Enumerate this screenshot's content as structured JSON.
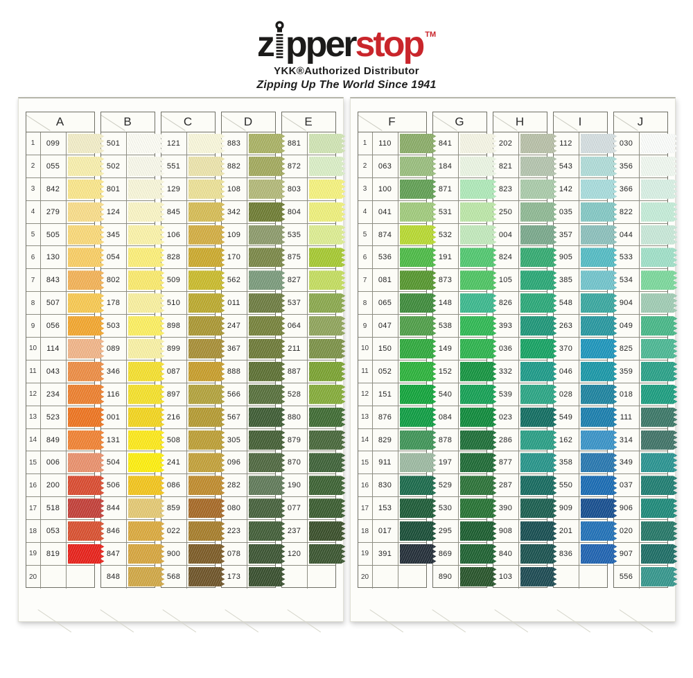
{
  "header": {
    "logo": {
      "part1": "z",
      "part2": "pper",
      "part3": "stop",
      "tm": "TM"
    },
    "subtitle": "YKK®Authorized Distributor",
    "tagline": "Zipping Up The World Since 1941",
    "brand_black": "#1c1b1a",
    "brand_red": "#c9252b"
  },
  "row_numbers": [
    "1",
    "2",
    "3",
    "4",
    "5",
    "6",
    "7",
    "8",
    "9",
    "10",
    "11",
    "12",
    "13",
    "14",
    "15",
    "16",
    "17",
    "18",
    "19",
    "20"
  ],
  "panels": [
    {
      "side": "left",
      "columns": [
        {
          "letter": "A",
          "has_row_numbers": true,
          "cells": [
            {
              "code": "099",
              "color": "#f1ecc7"
            },
            {
              "code": "055",
              "color": "#f7eeac"
            },
            {
              "code": "842",
              "color": "#f9e58a"
            },
            {
              "code": "279",
              "color": "#f8dc89"
            },
            {
              "code": "505",
              "color": "#f9d878"
            },
            {
              "code": "130",
              "color": "#f8cd64"
            },
            {
              "code": "843",
              "color": "#f2b156"
            },
            {
              "code": "507",
              "color": "#f7c851"
            },
            {
              "code": "056",
              "color": "#f2a62e"
            },
            {
              "code": "114",
              "color": "#f0b488"
            },
            {
              "code": "043",
              "color": "#ec8c44"
            },
            {
              "code": "234",
              "color": "#ec7f2e"
            },
            {
              "code": "523",
              "color": "#ed7420"
            },
            {
              "code": "849",
              "color": "#f08233"
            },
            {
              "code": "006",
              "color": "#e9906c"
            },
            {
              "code": "200",
              "color": "#d94b30"
            },
            {
              "code": "518",
              "color": "#c23f38"
            },
            {
              "code": "053",
              "color": "#d85030"
            },
            {
              "code": "819",
              "color": "#e7211a"
            },
            {
              "code": "",
              "color": ""
            }
          ]
        },
        {
          "letter": "B",
          "has_row_numbers": false,
          "cells": [
            {
              "code": "501",
              "color": "#fbfbf3"
            },
            {
              "code": "502",
              "color": "#f7f7e9"
            },
            {
              "code": "801",
              "color": "#f7f5d8"
            },
            {
              "code": "124",
              "color": "#f9f4c4"
            },
            {
              "code": "345",
              "color": "#faf2a8"
            },
            {
              "code": "054",
              "color": "#fbee78"
            },
            {
              "code": "802",
              "color": "#f9e96c"
            },
            {
              "code": "178",
              "color": "#f8ef9e"
            },
            {
              "code": "503",
              "color": "#fbee60"
            },
            {
              "code": "089",
              "color": "#f8f0a4"
            },
            {
              "code": "346",
              "color": "#f4df2e"
            },
            {
              "code": "116",
              "color": "#f4e02a"
            },
            {
              "code": "001",
              "color": "#f2d41e"
            },
            {
              "code": "131",
              "color": "#fce81a"
            },
            {
              "code": "504",
              "color": "#fdee0e"
            },
            {
              "code": "506",
              "color": "#f2c41c"
            },
            {
              "code": "844",
              "color": "#e3c873"
            },
            {
              "code": "846",
              "color": "#daa93e"
            },
            {
              "code": "847",
              "color": "#d6a53e"
            },
            {
              "code": "848",
              "color": "#d0a745"
            }
          ]
        },
        {
          "letter": "C",
          "has_row_numbers": false,
          "cells": [
            {
              "code": "121",
              "color": "#f8f6da"
            },
            {
              "code": "551",
              "color": "#ebe3ab"
            },
            {
              "code": "129",
              "color": "#ebe096"
            },
            {
              "code": "845",
              "color": "#d5bc55"
            },
            {
              "code": "106",
              "color": "#d2ad42"
            },
            {
              "code": "828",
              "color": "#cba92d"
            },
            {
              "code": "509",
              "color": "#c9ba2c"
            },
            {
              "code": "510",
              "color": "#bba92e"
            },
            {
              "code": "898",
              "color": "#aa9733"
            },
            {
              "code": "899",
              "color": "#a78e36"
            },
            {
              "code": "087",
              "color": "#c79d2b"
            },
            {
              "code": "897",
              "color": "#b2a23c"
            },
            {
              "code": "216",
              "color": "#b49a32"
            },
            {
              "code": "508",
              "color": "#bc9e35"
            },
            {
              "code": "241",
              "color": "#c2a039"
            },
            {
              "code": "086",
              "color": "#bf8b2d"
            },
            {
              "code": "859",
              "color": "#a66926"
            },
            {
              "code": "022",
              "color": "#a67d2b"
            },
            {
              "code": "900",
              "color": "#7c5b26"
            },
            {
              "code": "568",
              "color": "#6e5428"
            }
          ]
        },
        {
          "letter": "D",
          "has_row_numbers": false,
          "cells": [
            {
              "code": "883",
              "color": "#a9b164"
            },
            {
              "code": "882",
              "color": "#a2a95d"
            },
            {
              "code": "108",
              "color": "#b2b878"
            },
            {
              "code": "342",
              "color": "#6e7c33"
            },
            {
              "code": "109",
              "color": "#8c9a6b"
            },
            {
              "code": "170",
              "color": "#7a8747"
            },
            {
              "code": "562",
              "color": "#7a9a7b"
            },
            {
              "code": "011",
              "color": "#6d7c41"
            },
            {
              "code": "247",
              "color": "#76823b"
            },
            {
              "code": "367",
              "color": "#6d7a38"
            },
            {
              "code": "888",
              "color": "#5c7033"
            },
            {
              "code": "566",
              "color": "#57703c"
            },
            {
              "code": "567",
              "color": "#3e5c34"
            },
            {
              "code": "305",
              "color": "#445f35"
            },
            {
              "code": "096",
              "color": "#4f6840"
            },
            {
              "code": "282",
              "color": "#607a59"
            },
            {
              "code": "080",
              "color": "#46613c"
            },
            {
              "code": "223",
              "color": "#425e38"
            },
            {
              "code": "078",
              "color": "#3c5533"
            },
            {
              "code": "173",
              "color": "#384f2e"
            }
          ]
        },
        {
          "letter": "E",
          "has_row_numbers": false,
          "cells": [
            {
              "code": "881",
              "color": "#cfe3b3"
            },
            {
              "code": "872",
              "color": "#d9edc5"
            },
            {
              "code": "803",
              "color": "#f4f17d"
            },
            {
              "code": "804",
              "color": "#edef7b"
            },
            {
              "code": "535",
              "color": "#dcec91"
            },
            {
              "code": "875",
              "color": "#a5c831"
            },
            {
              "code": "827",
              "color": "#c3dc5f"
            },
            {
              "code": "537",
              "color": "#8aa84d"
            },
            {
              "code": "064",
              "color": "#8fa45b"
            },
            {
              "code": "211",
              "color": "#7b9147"
            },
            {
              "code": "887",
              "color": "#7aa231"
            },
            {
              "code": "528",
              "color": "#84ab39"
            },
            {
              "code": "880",
              "color": "#3f6b33"
            },
            {
              "code": "879",
              "color": "#47673a"
            },
            {
              "code": "870",
              "color": "#3e6238"
            },
            {
              "code": "190",
              "color": "#3c6233"
            },
            {
              "code": "077",
              "color": "#3a5c30"
            },
            {
              "code": "237",
              "color": "#394f2a"
            },
            {
              "code": "120",
              "color": "#3a5530"
            },
            {
              "code": "",
              "color": ""
            }
          ]
        }
      ]
    },
    {
      "side": "right",
      "columns": [
        {
          "letter": "F",
          "has_row_numbers": true,
          "cells": [
            {
              "code": "110",
              "color": "#8aac68"
            },
            {
              "code": "063",
              "color": "#99bd7d"
            },
            {
              "code": "100",
              "color": "#619f54"
            },
            {
              "code": "041",
              "color": "#a0ca7c"
            },
            {
              "code": "874",
              "color": "#b7d831"
            },
            {
              "code": "536",
              "color": "#4cba46"
            },
            {
              "code": "081",
              "color": "#55962e"
            },
            {
              "code": "065",
              "color": "#3e8b3b"
            },
            {
              "code": "047",
              "color": "#4f9e48"
            },
            {
              "code": "150",
              "color": "#2fa93d"
            },
            {
              "code": "052",
              "color": "#2cb23b"
            },
            {
              "code": "151",
              "color": "#12a43b"
            },
            {
              "code": "876",
              "color": "#0f9d43"
            },
            {
              "code": "829",
              "color": "#3f9457"
            },
            {
              "code": "911",
              "color": "#9cb9a1"
            },
            {
              "code": "830",
              "color": "#1b6a4b"
            },
            {
              "code": "153",
              "color": "#1d5b37"
            },
            {
              "code": "017",
              "color": "#194e37"
            },
            {
              "code": "391",
              "color": "#232e38"
            },
            {
              "code": "",
              "color": ""
            }
          ]
        },
        {
          "letter": "G",
          "has_row_numbers": false,
          "cells": [
            {
              "code": "841",
              "color": "#f4f4e4"
            },
            {
              "code": "184",
              "color": "#eaf4e2"
            },
            {
              "code": "871",
              "color": "#aee8b8"
            },
            {
              "code": "531",
              "color": "#bbe6a7"
            },
            {
              "code": "532",
              "color": "#c1e8bb"
            },
            {
              "code": "191",
              "color": "#51c76f"
            },
            {
              "code": "873",
              "color": "#4dc362"
            },
            {
              "code": "148",
              "color": "#3bb88d"
            },
            {
              "code": "538",
              "color": "#2fb853"
            },
            {
              "code": "149",
              "color": "#2db34d"
            },
            {
              "code": "152",
              "color": "#159440"
            },
            {
              "code": "540",
              "color": "#15a054"
            },
            {
              "code": "084",
              "color": "#0f8a3b"
            },
            {
              "code": "878",
              "color": "#1d6e37"
            },
            {
              "code": "197",
              "color": "#1e6a35"
            },
            {
              "code": "529",
              "color": "#2b7237"
            },
            {
              "code": "530",
              "color": "#267233"
            },
            {
              "code": "295",
              "color": "#1b5d2f"
            },
            {
              "code": "869",
              "color": "#1e6131"
            },
            {
              "code": "890",
              "color": "#27542a"
            }
          ]
        },
        {
          "letter": "H",
          "has_row_numbers": false,
          "cells": [
            {
              "code": "202",
              "color": "#b7bfa7"
            },
            {
              "code": "821",
              "color": "#b3c3ad"
            },
            {
              "code": "823",
              "color": "#a9caa9"
            },
            {
              "code": "250",
              "color": "#8eb893"
            },
            {
              "code": "004",
              "color": "#79a88b"
            },
            {
              "code": "824",
              "color": "#34aa71"
            },
            {
              "code": "105",
              "color": "#29a775"
            },
            {
              "code": "826",
              "color": "#2aa878"
            },
            {
              "code": "393",
              "color": "#1e9678"
            },
            {
              "code": "036",
              "color": "#16a263"
            },
            {
              "code": "332",
              "color": "#1d9a88"
            },
            {
              "code": "539",
              "color": "#2aa584"
            },
            {
              "code": "023",
              "color": "#126d61"
            },
            {
              "code": "286",
              "color": "#299e85"
            },
            {
              "code": "877",
              "color": "#269489"
            },
            {
              "code": "287",
              "color": "#166a5f"
            },
            {
              "code": "390",
              "color": "#1a5e4f"
            },
            {
              "code": "908",
              "color": "#174e51"
            },
            {
              "code": "840",
              "color": "#1a524f"
            },
            {
              "code": "103",
              "color": "#1c4a52"
            }
          ]
        },
        {
          "letter": "I",
          "has_row_numbers": false,
          "cells": [
            {
              "code": "112",
              "color": "#d3dddf"
            },
            {
              "code": "543",
              "color": "#afdbd7"
            },
            {
              "code": "142",
              "color": "#a7dbdb"
            },
            {
              "code": "035",
              "color": "#83c7c3"
            },
            {
              "code": "357",
              "color": "#8bbfbb"
            },
            {
              "code": "905",
              "color": "#54bbc3"
            },
            {
              "code": "385",
              "color": "#71c3cb"
            },
            {
              "code": "548",
              "color": "#39a79f"
            },
            {
              "code": "263",
              "color": "#27979f"
            },
            {
              "code": "370",
              "color": "#1d95bb"
            },
            {
              "code": "046",
              "color": "#1a97a7"
            },
            {
              "code": "028",
              "color": "#1d839f"
            },
            {
              "code": "549",
              "color": "#1a7ead"
            },
            {
              "code": "162",
              "color": "#3993c7"
            },
            {
              "code": "358",
              "color": "#2777af"
            },
            {
              "code": "550",
              "color": "#196bb3"
            },
            {
              "code": "909",
              "color": "#164e8f"
            },
            {
              "code": "201",
              "color": "#2171b7"
            },
            {
              "code": "836",
              "color": "#1f63b0"
            },
            {
              "code": "",
              "color": ""
            }
          ]
        },
        {
          "letter": "J",
          "has_row_numbers": false,
          "cells": [
            {
              "code": "030",
              "color": "#fafcfa"
            },
            {
              "code": "356",
              "color": "#eff7ef"
            },
            {
              "code": "366",
              "color": "#d7efe3"
            },
            {
              "code": "822",
              "color": "#c3ebd7"
            },
            {
              "code": "044",
              "color": "#c7e7d7"
            },
            {
              "code": "533",
              "color": "#9fdfc7"
            },
            {
              "code": "534",
              "color": "#7bd79b"
            },
            {
              "code": "904",
              "color": "#9fcbb3"
            },
            {
              "code": "049",
              "color": "#47b787"
            },
            {
              "code": "825",
              "color": "#4bb793"
            },
            {
              "code": "359",
              "color": "#29a087"
            },
            {
              "code": "018",
              "color": "#1c9d7f"
            },
            {
              "code": "111",
              "color": "#3b7767"
            },
            {
              "code": "314",
              "color": "#407367"
            },
            {
              "code": "349",
              "color": "#299390"
            },
            {
              "code": "037",
              "color": "#1f7d71"
            },
            {
              "code": "906",
              "color": "#1e8979"
            },
            {
              "code": "020",
              "color": "#257767"
            },
            {
              "code": "907",
              "color": "#1d6d65"
            },
            {
              "code": "556",
              "color": "#35968c"
            }
          ]
        }
      ]
    }
  ]
}
